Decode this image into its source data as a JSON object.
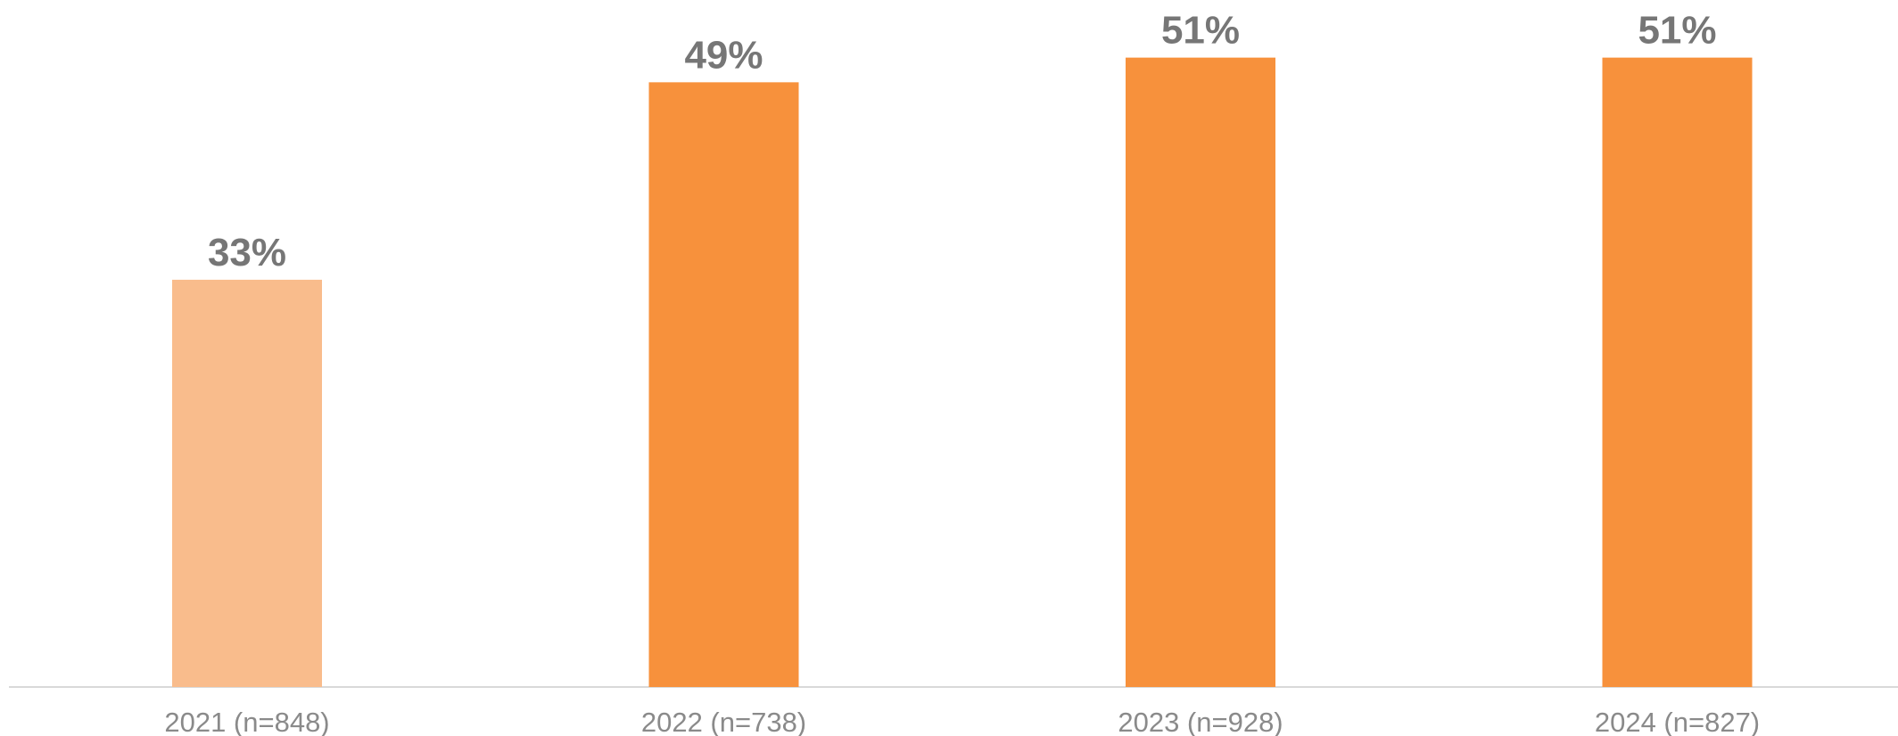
{
  "chart_data": {
    "type": "bar",
    "categories": [
      "2021 (n=848)",
      "2022 (n=738)",
      "2023 (n=928)",
      "2024 (n=827)"
    ],
    "values": [
      33,
      49,
      51,
      51
    ],
    "value_labels": [
      "33%",
      "49%",
      "51%",
      "51%"
    ],
    "bar_colors": [
      "#F9BC8C",
      "#F7913C",
      "#F7913C",
      "#F7913C"
    ],
    "ylim": [
      0,
      55
    ],
    "grid": false,
    "legend": "none",
    "title": "",
    "xlabel": "",
    "ylabel": ""
  }
}
